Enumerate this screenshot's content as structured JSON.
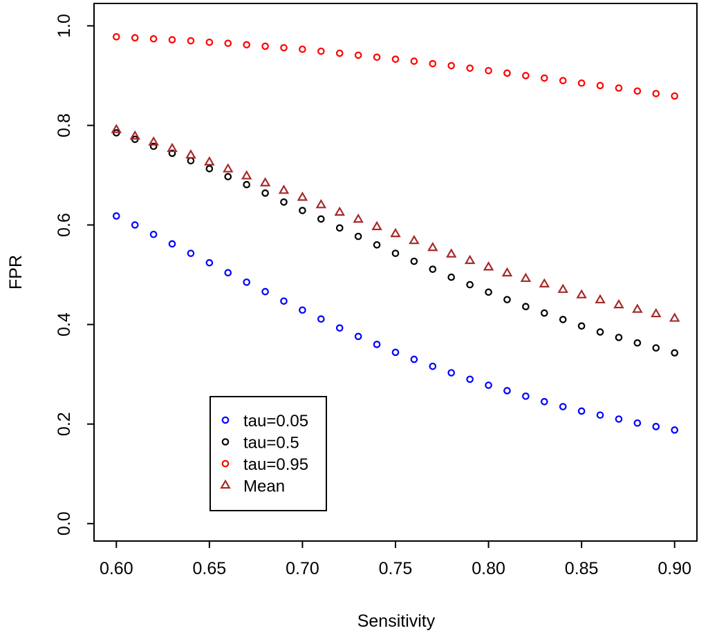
{
  "chart_data": {
    "type": "scatter",
    "title": "",
    "xlabel": "Sensitivity",
    "ylabel": "FPR",
    "xlim": [
      0.588,
      0.912
    ],
    "ylim": [
      -0.035,
      1.045
    ],
    "xticks": [
      0.6,
      0.65,
      0.7,
      0.75,
      0.8,
      0.85,
      0.9
    ],
    "xtick_labels": [
      "0.60",
      "0.65",
      "0.70",
      "0.75",
      "0.80",
      "0.85",
      "0.90"
    ],
    "yticks": [
      0.0,
      0.2,
      0.4,
      0.6,
      0.8,
      1.0
    ],
    "ytick_labels": [
      "0.0",
      "0.2",
      "0.4",
      "0.6",
      "0.8",
      "1.0"
    ],
    "legend_position": "bottom-left",
    "x": [
      0.6,
      0.61,
      0.62,
      0.63,
      0.64,
      0.65,
      0.66,
      0.67,
      0.68,
      0.69,
      0.7,
      0.71,
      0.72,
      0.73,
      0.74,
      0.75,
      0.76,
      0.77,
      0.78,
      0.79,
      0.8,
      0.81,
      0.82,
      0.83,
      0.84,
      0.85,
      0.86,
      0.87,
      0.88,
      0.89,
      0.9
    ],
    "series": [
      {
        "name": "tau=0.05",
        "marker": "circle",
        "color": "#0000ff",
        "values": [
          0.618,
          0.6,
          0.581,
          0.562,
          0.543,
          0.524,
          0.504,
          0.485,
          0.466,
          0.447,
          0.429,
          0.411,
          0.393,
          0.376,
          0.36,
          0.344,
          0.33,
          0.316,
          0.303,
          0.29,
          0.278,
          0.267,
          0.256,
          0.245,
          0.235,
          0.226,
          0.218,
          0.21,
          0.202,
          0.195,
          0.188
        ]
      },
      {
        "name": "tau=0.5",
        "marker": "circle",
        "color": "#000000",
        "values": [
          0.785,
          0.772,
          0.758,
          0.744,
          0.729,
          0.713,
          0.697,
          0.681,
          0.664,
          0.646,
          0.629,
          0.612,
          0.594,
          0.577,
          0.56,
          0.543,
          0.527,
          0.511,
          0.495,
          0.48,
          0.465,
          0.45,
          0.436,
          0.423,
          0.41,
          0.397,
          0.385,
          0.374,
          0.363,
          0.353,
          0.343
        ]
      },
      {
        "name": "tau=0.95",
        "marker": "circle",
        "color": "#ff0000",
        "values": [
          0.978,
          0.976,
          0.974,
          0.972,
          0.97,
          0.967,
          0.965,
          0.962,
          0.959,
          0.956,
          0.953,
          0.949,
          0.945,
          0.941,
          0.937,
          0.933,
          0.929,
          0.924,
          0.92,
          0.915,
          0.91,
          0.905,
          0.9,
          0.895,
          0.89,
          0.885,
          0.88,
          0.875,
          0.869,
          0.864,
          0.859
        ]
      },
      {
        "name": "Mean",
        "marker": "triangle",
        "color": "#a52a2a",
        "values": [
          0.791,
          0.778,
          0.766,
          0.753,
          0.74,
          0.726,
          0.712,
          0.698,
          0.684,
          0.669,
          0.655,
          0.64,
          0.625,
          0.611,
          0.596,
          0.582,
          0.568,
          0.554,
          0.541,
          0.528,
          0.515,
          0.503,
          0.492,
          0.481,
          0.47,
          0.459,
          0.449,
          0.439,
          0.43,
          0.421,
          0.412
        ]
      }
    ]
  }
}
